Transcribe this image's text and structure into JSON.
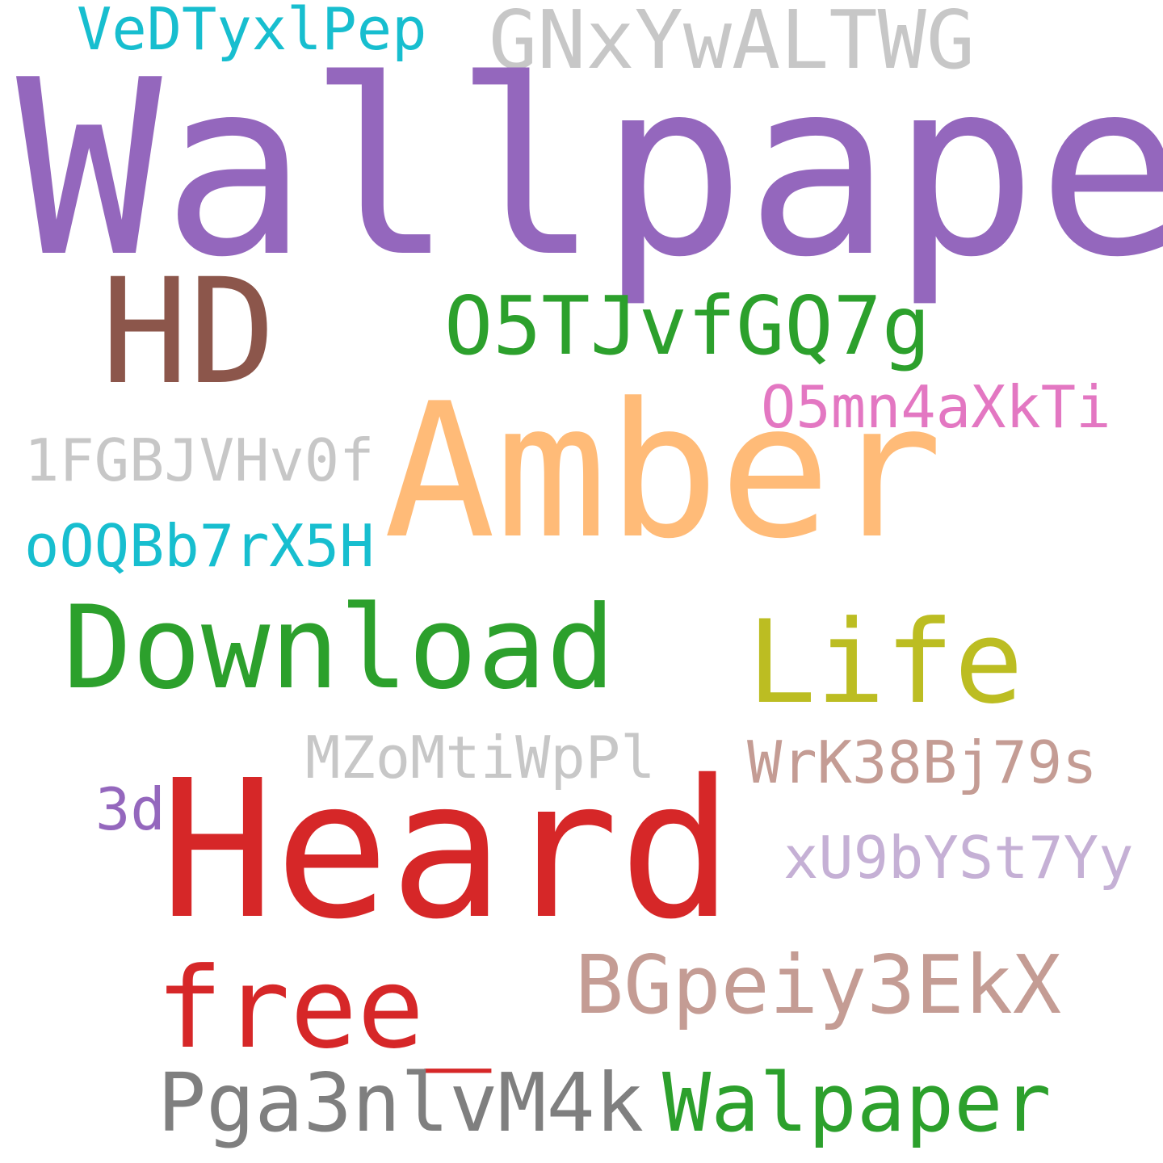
{
  "words": [
    {
      "id": "vedt",
      "text": "VeDTyxlPep",
      "color": "#17becf"
    },
    {
      "id": "gnxy",
      "text": "GNxYwALTWG",
      "color": "#c7c7c7"
    },
    {
      "id": "wallpaper",
      "text": "Wallpaper",
      "color": "#9467bd"
    },
    {
      "id": "hd",
      "text": "HD",
      "color": "#8c564b"
    },
    {
      "id": "o5tj",
      "text": "O5TJvfGQ7g",
      "color": "#2ca02c"
    },
    {
      "id": "o5mn",
      "text": "O5mn4aXkTi",
      "color": "#e377c2"
    },
    {
      "id": "amber",
      "text": "Amber",
      "color": "#ffbb78"
    },
    {
      "id": "1fgb",
      "text": "1FGBJVHv0f",
      "color": "#c7c7c7"
    },
    {
      "id": "oqbb",
      "text": "oOQBb7rX5H",
      "color": "#17becf"
    },
    {
      "id": "download",
      "text": "Download",
      "color": "#2ca02c"
    },
    {
      "id": "life",
      "text": "Life",
      "color": "#bcbd22"
    },
    {
      "id": "mzom",
      "text": "MZoMtiWpPl",
      "color": "#c7c7c7"
    },
    {
      "id": "wrk3",
      "text": "WrK38Bj79s",
      "color": "#c49c94"
    },
    {
      "id": "3d",
      "text": "3d",
      "color": "#9467bd"
    },
    {
      "id": "heard",
      "text": "Heard",
      "color": "#d62728"
    },
    {
      "id": "xu9b",
      "text": "xU9bYSt7Yy",
      "color": "#c5b0d5"
    },
    {
      "id": "bgpe",
      "text": "BGpeiy3EkX",
      "color": "#c49c94"
    },
    {
      "id": "free",
      "text": "free_",
      "color": "#d62728"
    },
    {
      "id": "pga3",
      "text": "Pga3nlvM4k",
      "color": "#7f7f7f"
    },
    {
      "id": "walpaper",
      "text": "Walpaper",
      "color": "#2ca02c"
    }
  ]
}
